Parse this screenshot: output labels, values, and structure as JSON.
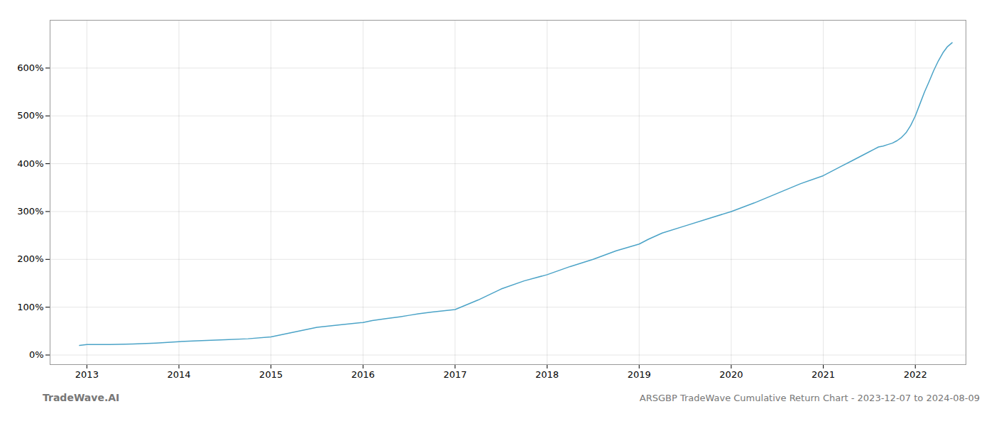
{
  "chart_data": {
    "type": "line",
    "title": "ARSGBP TradeWave Cumulative Return Chart - 2023-12-07 to 2024-08-09",
    "annotations": [
      "TradeWave.AI"
    ],
    "color": "#4ba3c7",
    "grid": true,
    "x": [
      2012.92,
      2013.0,
      2013.25,
      2013.5,
      2013.75,
      2014.0,
      2014.25,
      2014.5,
      2014.75,
      2015.0,
      2015.25,
      2015.5,
      2015.75,
      2016.0,
      2016.1,
      2016.25,
      2016.4,
      2016.5,
      2016.6,
      2016.75,
      2017.0,
      2017.25,
      2017.5,
      2017.75,
      2018.0,
      2018.25,
      2018.5,
      2018.75,
      2019.0,
      2019.1,
      2019.25,
      2019.5,
      2019.75,
      2020.0,
      2020.25,
      2020.5,
      2020.75,
      2021.0,
      2021.1,
      2021.2,
      2021.3,
      2021.4,
      2021.5,
      2021.55,
      2021.6,
      2021.65,
      2021.7,
      2021.75,
      2021.8,
      2021.85,
      2021.9,
      2021.95,
      2022.0,
      2022.05,
      2022.1,
      2022.15,
      2022.2,
      2022.25,
      2022.3,
      2022.35,
      2022.4
    ],
    "values": [
      20,
      22,
      22,
      23,
      25,
      28,
      30,
      32,
      34,
      38,
      48,
      58,
      63,
      68,
      72,
      76,
      80,
      83,
      86,
      90,
      95,
      115,
      138,
      155,
      168,
      185,
      200,
      218,
      232,
      242,
      255,
      270,
      285,
      300,
      318,
      338,
      358,
      375,
      385,
      395,
      405,
      415,
      425,
      430,
      435,
      437,
      440,
      443,
      448,
      455,
      465,
      480,
      500,
      525,
      550,
      572,
      595,
      615,
      632,
      645,
      653
    ],
    "xlim": [
      2012.6,
      2022.55
    ],
    "xticks": [
      2013,
      2014,
      2015,
      2016,
      2017,
      2018,
      2019,
      2020,
      2021,
      2022
    ],
    "ylim": [
      -20,
      700
    ],
    "yticks": [
      {
        "value": 0,
        "label": "0%"
      },
      {
        "value": 100,
        "label": "100%"
      },
      {
        "value": 200,
        "label": "200%"
      },
      {
        "value": 300,
        "label": "300%"
      },
      {
        "value": 400,
        "label": "400%"
      },
      {
        "value": 500,
        "label": "500%"
      },
      {
        "value": 600,
        "label": "600%"
      }
    ]
  }
}
